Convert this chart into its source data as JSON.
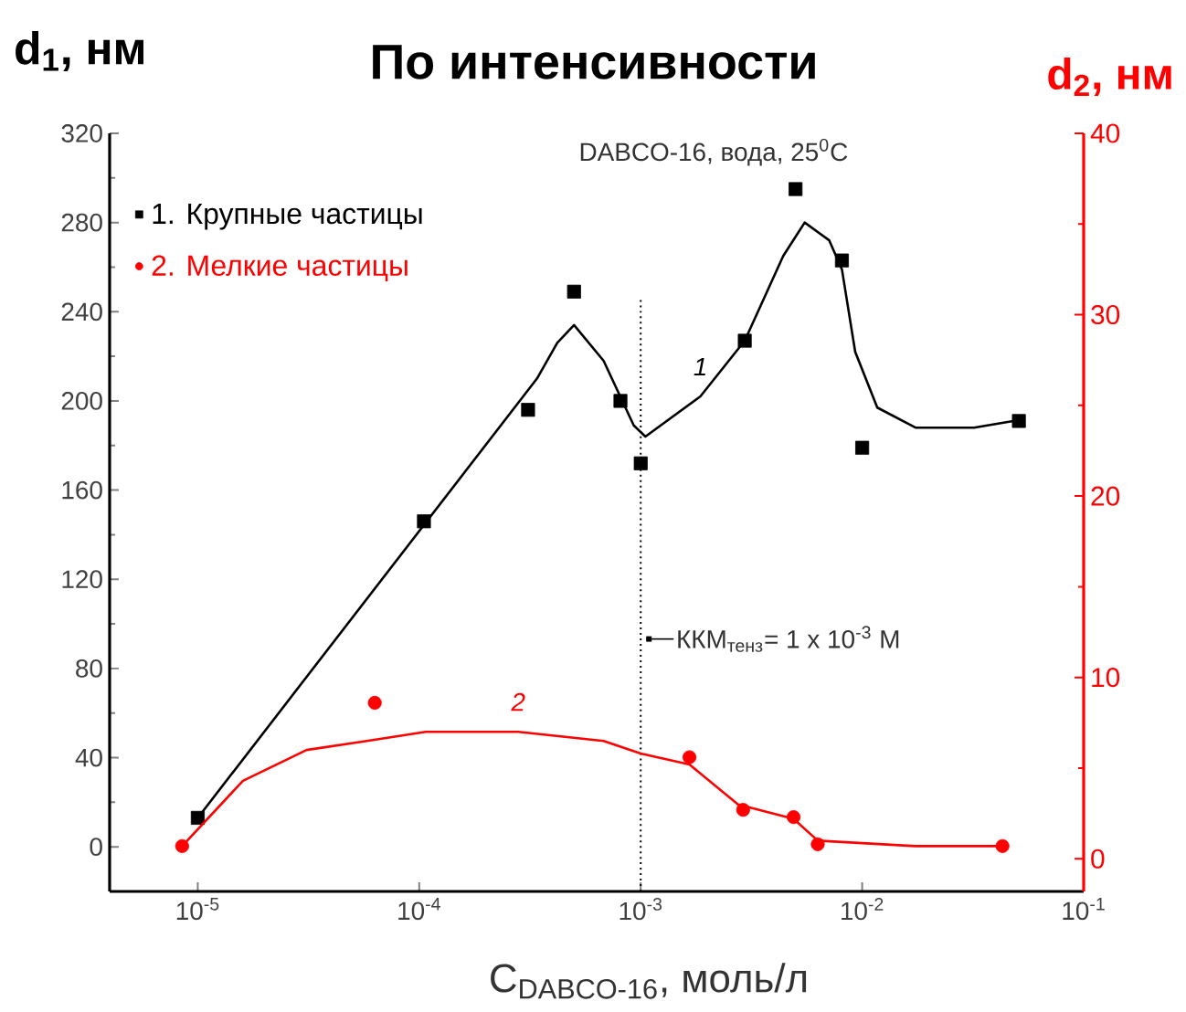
{
  "chart_data": {
    "type": "scatter",
    "title": "По интенсивности",
    "xlabel": "C$_{DABCO-16}$, моль/л",
    "ylabel": "d$_{1}$, нм",
    "y2label": "d$_{2}$, нм",
    "log": "x",
    "xlim": [
      4e-06,
      0.1
    ],
    "xticks": [
      {
        "value": 1e-05,
        "label": "10$^{-5}$"
      },
      {
        "value": 0.0001,
        "label": "10$^{-4}$"
      },
      {
        "value": 0.001,
        "label": "10$^{-3}$"
      },
      {
        "value": 0.01,
        "label": "10$^{-2}$"
      },
      {
        "value": 0.1,
        "label": "10$^{-1}$"
      }
    ],
    "ylim": [
      -20,
      320
    ],
    "yticks": [
      0,
      40,
      80,
      120,
      160,
      200,
      240,
      280,
      320
    ],
    "y2lim": [
      -1.8,
      40
    ],
    "y2ticks": [
      0,
      10,
      20,
      30,
      40
    ],
    "grid": false,
    "legend": "top left",
    "series": [
      {
        "name": "1. Крупные частицы",
        "marker": "square",
        "color": "#000000",
        "x": [
          1e-05,
          0.000105,
          0.00031,
          0.0005,
          0.00081,
          0.001,
          0.00295,
          0.005,
          0.0081,
          0.01,
          0.051
        ],
        "values": [
          13,
          146,
          196,
          249,
          200,
          172,
          227,
          295,
          263,
          179,
          191
        ]
      },
      {
        "name": "2. Мелкие частицы",
        "marker": "circle",
        "color": "#ff0000",
        "axis": "y2",
        "x": [
          8.5e-06,
          6.3e-05,
          0.00166,
          0.0029,
          0.0049,
          0.0063,
          0.043
        ],
        "values": [
          0.7,
          8.6,
          5.6,
          2.7,
          2.3,
          0.8,
          0.7
        ]
      },
      {
        "name": "1",
        "type": "line",
        "marker": "none",
        "line_style": "solid",
        "color": "#000000",
        "x": [
          1e-05,
          0.00034,
          0.00042,
          0.0005,
          0.00068,
          0.00093,
          0.00105,
          0.00186,
          0.00295,
          0.0044,
          0.0055,
          0.0071,
          0.0081,
          0.0093,
          0.0117,
          0.0174,
          0.032,
          0.048
        ],
        "values": [
          13,
          210,
          226,
          234,
          218,
          189,
          184,
          202,
          227,
          265,
          280,
          272,
          259,
          222,
          197,
          188,
          188,
          191
        ]
      },
      {
        "name": "2",
        "type": "line",
        "marker": "none",
        "line_style": "solid",
        "color": "#ff0000",
        "axis": "y2",
        "x": [
          8.5e-06,
          1.6e-05,
          3.1e-05,
          5.8e-05,
          0.000107,
          0.00028,
          0.00068,
          0.001,
          0.00166,
          0.00275,
          0.0049,
          0.0063,
          0.0174,
          0.043
        ],
        "values": [
          0.7,
          4.3,
          6.0,
          6.5,
          7.0,
          7.0,
          6.5,
          5.8,
          5.2,
          3.0,
          2.2,
          1.0,
          0.7,
          0.7
        ]
      }
    ],
    "ref_lines": [
      {
        "axis": "x",
        "value": 0.001,
        "label": "ККМ$_{тенз}$= 1 x 10$^{-3}$ M",
        "line_style": "dotted"
      }
    ],
    "annotations": [
      "DABCO-16, вода, 25$^{0}$C"
    ]
  }
}
